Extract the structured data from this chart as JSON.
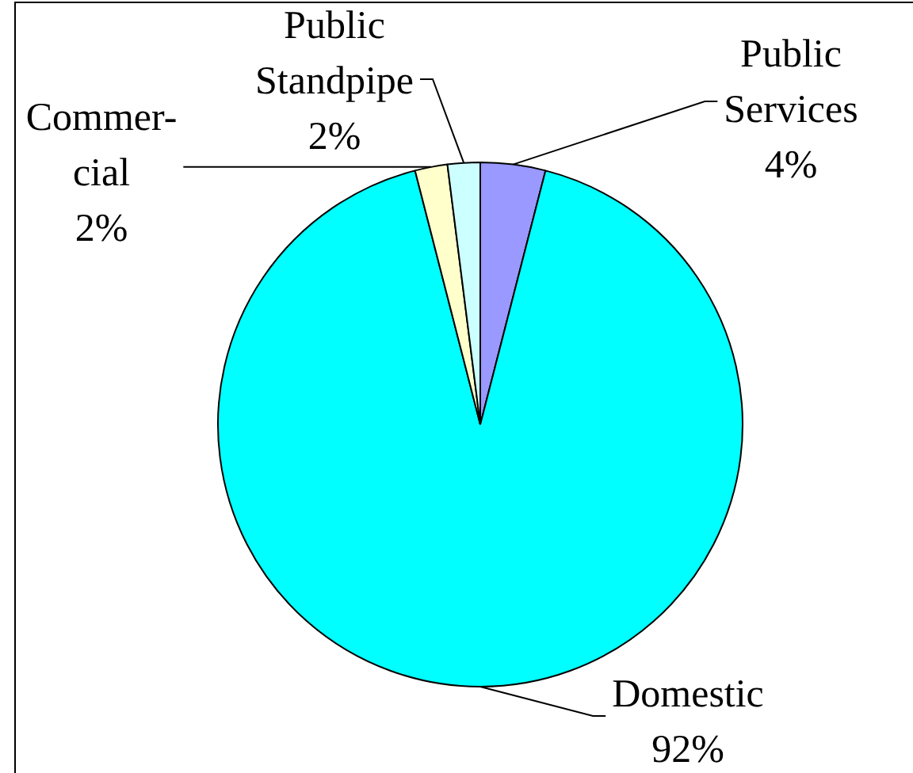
{
  "chart_data": {
    "type": "pie",
    "categories": [
      "Public Services",
      "Domestic",
      "Commer-cial",
      "Public Standpipe"
    ],
    "values": [
      4,
      92,
      2,
      2
    ],
    "colors": [
      "#9999ff",
      "#00ffff",
      "#ffffcc",
      "#ccffff"
    ],
    "value_labels": [
      "4%",
      "92%",
      "2%",
      "2%"
    ],
    "legend": false
  }
}
